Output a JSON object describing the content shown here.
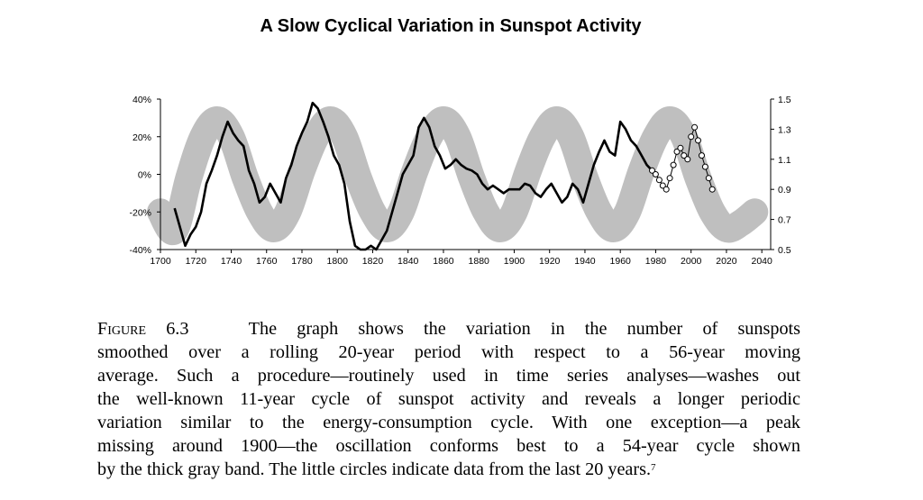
{
  "chart_data": {
    "type": "line",
    "title": "A Slow Cyclical Variation in Sunspot Activity",
    "x_ticks": [
      "1700",
      "1720",
      "1740",
      "1760",
      "1780",
      "1800",
      "1820",
      "1840",
      "1860",
      "1880",
      "1900",
      "1920",
      "1940",
      "1960",
      "1980",
      "2000",
      "2020",
      "2040"
    ],
    "xlim": [
      1700,
      2045
    ],
    "left_axis": {
      "ticks": [
        "40%",
        "20%",
        "0%",
        "-20%",
        "-40%"
      ],
      "ylim": [
        -40,
        40
      ]
    },
    "right_axis": {
      "ticks": [
        "1.5",
        "1.3",
        "1.1",
        "0.9",
        "0.7",
        "0.5"
      ],
      "ylim": [
        0.5,
        1.5
      ]
    },
    "grid": false,
    "series": [
      {
        "style": "thick-gray-band",
        "axis": "left",
        "color": "#bfbfbf",
        "x": [
          1700,
          1708,
          1716,
          1724,
          1732,
          1740,
          1748,
          1756,
          1764,
          1772,
          1780,
          1788,
          1796,
          1804,
          1812,
          1820,
          1828,
          1836,
          1844,
          1852,
          1860,
          1868,
          1876,
          1884,
          1892,
          1900,
          1908,
          1916,
          1924,
          1932,
          1940,
          1948,
          1956,
          1964,
          1972,
          1980,
          1988,
          1996,
          2004,
          2012,
          2020,
          2028,
          2036
        ],
        "values": [
          -20,
          -30,
          -2,
          20,
          29,
          20,
          -2,
          -20,
          -29,
          -20,
          2,
          20,
          29,
          20,
          -2,
          -20,
          -29,
          -20,
          2,
          20,
          29,
          20,
          -2,
          -20,
          -29,
          -20,
          2,
          20,
          29,
          20,
          -2,
          -20,
          -29,
          -20,
          2,
          20,
          29,
          20,
          -2,
          -20,
          -29,
          -26,
          -20
        ]
      },
      {
        "style": "black-line",
        "axis": "left",
        "color": "#000000",
        "x": [
          1708,
          1711,
          1714,
          1717,
          1720,
          1723,
          1726,
          1729,
          1732,
          1735,
          1738,
          1741,
          1744,
          1747,
          1750,
          1753,
          1756,
          1759,
          1762,
          1765,
          1768,
          1771,
          1774,
          1777,
          1780,
          1783,
          1786,
          1789,
          1792,
          1795,
          1798,
          1801,
          1804,
          1807,
          1810,
          1813,
          1816,
          1819,
          1822,
          1825,
          1828,
          1831,
          1834,
          1837,
          1840,
          1843,
          1846,
          1849,
          1852,
          1855,
          1858,
          1861,
          1864,
          1867,
          1870,
          1873,
          1876,
          1879,
          1882,
          1885,
          1888,
          1891,
          1894,
          1897,
          1900,
          1903,
          1906,
          1909,
          1912,
          1915,
          1918,
          1921,
          1924,
          1927,
          1930,
          1933,
          1936,
          1939,
          1942,
          1945,
          1948,
          1951,
          1954,
          1957,
          1960,
          1963,
          1966,
          1969,
          1972,
          1975,
          1978
        ],
        "values": [
          -18,
          -28,
          -38,
          -32,
          -28,
          -20,
          -5,
          2,
          10,
          20,
          28,
          22,
          18,
          15,
          2,
          -5,
          -15,
          -12,
          -5,
          -10,
          -15,
          -2,
          5,
          15,
          22,
          28,
          38,
          35,
          28,
          20,
          10,
          5,
          -5,
          -25,
          -38,
          -40,
          -40,
          -38,
          -40,
          -35,
          -30,
          -20,
          -10,
          0,
          5,
          10,
          25,
          30,
          25,
          15,
          10,
          3,
          5,
          8,
          5,
          3,
          2,
          0,
          -5,
          -8,
          -6,
          -8,
          -10,
          -8,
          -8,
          -8,
          -5,
          -6,
          -10,
          -12,
          -8,
          -5,
          -10,
          -15,
          -12,
          -5,
          -8,
          -15,
          -5,
          5,
          12,
          18,
          12,
          10,
          28,
          24,
          18,
          15,
          10,
          5,
          2
        ]
      },
      {
        "style": "circle-markers",
        "axis": "left",
        "color": "#000000",
        "x": [
          1978,
          1980,
          1982,
          1984,
          1986,
          1988,
          1990,
          1992,
          1994,
          1996,
          1998,
          2000,
          2002,
          2004,
          2006,
          2008,
          2010,
          2012
        ],
        "values": [
          2,
          0,
          -3,
          -6,
          -8,
          -2,
          5,
          12,
          14,
          10,
          8,
          20,
          25,
          18,
          10,
          4,
          -2,
          -8
        ]
      }
    ]
  },
  "caption": {
    "figure_label": "Figure 6.3",
    "lines": [
      "The graph shows the variation in the number of sunspots",
      "smoothed over a rolling 20-year period with respect to a 56-year moving",
      "average. Such a procedure—routinely used in time series analyses—washes out",
      "the well-known 11-year cycle of sunspot activity and reveals a longer periodic",
      "variation similar to the energy-consumption cycle. With one exception—a peak",
      "missing around 1900—the oscillation conforms best to a 54-year cycle shown",
      "by the thick gray band. The little circles indicate data from the last 20 years."
    ],
    "footnote": "7"
  }
}
